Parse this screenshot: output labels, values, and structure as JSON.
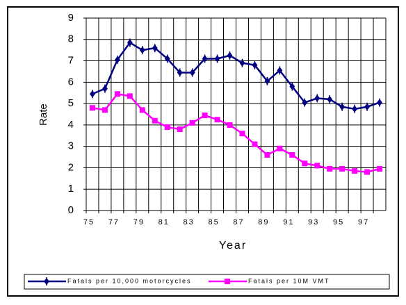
{
  "chart_data": {
    "type": "line",
    "x_label": "Year",
    "y_label": "Rate",
    "categories": [
      "75",
      null,
      "77",
      null,
      "79",
      null,
      "81",
      null,
      "83",
      null,
      "85",
      null,
      "87",
      null,
      "89",
      null,
      "91",
      null,
      "93",
      null,
      "95",
      null,
      "97",
      null
    ],
    "series": [
      {
        "name": "Fatals per 10,000 motorcycles",
        "color": "#000080",
        "marker": "tick",
        "values": [
          5.45,
          5.7,
          7.05,
          7.85,
          7.5,
          7.6,
          7.1,
          6.45,
          6.45,
          7.1,
          7.1,
          7.25,
          6.9,
          6.8,
          6.05,
          6.55,
          5.8,
          5.05,
          5.25,
          5.2,
          4.85,
          4.75,
          4.85,
          5.05
        ]
      },
      {
        "name": "Fatals per 10M VMT",
        "color": "#ff00ff",
        "marker": "square",
        "values": [
          4.8,
          4.7,
          5.45,
          5.35,
          4.7,
          4.2,
          3.9,
          3.8,
          4.1,
          4.45,
          4.25,
          4.0,
          3.6,
          3.1,
          2.6,
          2.9,
          2.6,
          2.2,
          2.1,
          1.95,
          1.95,
          1.85,
          1.8,
          1.95
        ]
      }
    ],
    "ylim": [
      0,
      9
    ],
    "yticks": [
      0,
      1,
      2,
      3,
      4,
      5,
      6,
      7,
      8,
      9
    ],
    "grid": true,
    "legend": "bottom"
  }
}
